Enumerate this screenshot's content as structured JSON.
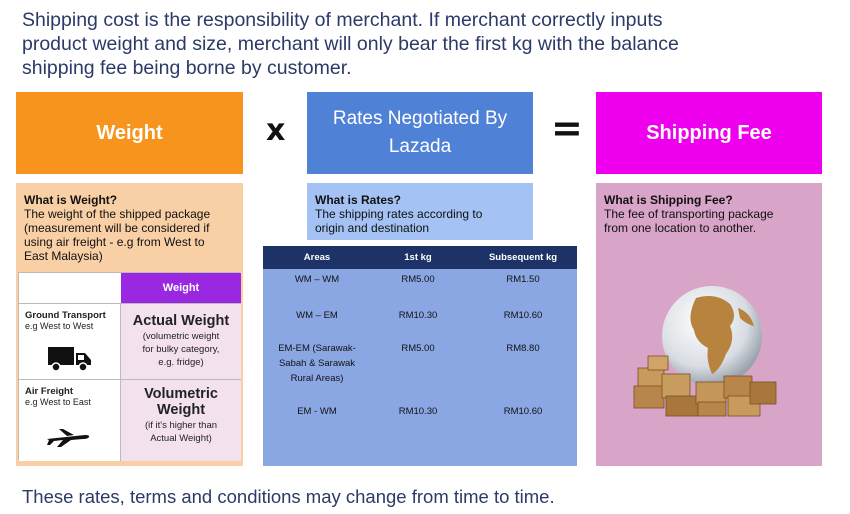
{
  "intro": {
    "line1": "Shipping cost is the responsibility of merchant. If merchant correctly inputs",
    "line2": "product weight and size, merchant will only bear the first kg with the balance",
    "line3": "shipping fee being borne by customer."
  },
  "headers": {
    "weight": "Weight",
    "operator_multiply": "x",
    "rates_line1": "Rates Negotiated By",
    "rates_line2": "Lazada",
    "operator_equals": "=",
    "shipping_fee": "Shipping Fee"
  },
  "weight_panel": {
    "title": "What is Weight?",
    "line1": "The weight of the shipped package",
    "line2": "(measurement will be considered if",
    "line3": "using air freight - e.g from West to",
    "line4": "East Malaysia)"
  },
  "weight_table": {
    "column_header": "Weight",
    "rows": [
      {
        "mode": "Ground Transport",
        "example": "e.g West to West",
        "weight_type": "Actual Weight",
        "note_line1": "(volumetric weight",
        "note_line2": "for bulky category,",
        "note_line3": "e.g. fridge)"
      },
      {
        "mode": "Air Freight",
        "example": "e.g West to East",
        "weight_type_line1": "Volumetric",
        "weight_type_line2": "Weight",
        "note_line1": "(if it's higher than",
        "note_line2": "Actual Weight)"
      }
    ]
  },
  "rates_panel": {
    "title": "What is Rates?",
    "line1": "The shipping rates according to",
    "line2": "origin and destination"
  },
  "rates_table": {
    "headers": [
      "Areas",
      "1st kg",
      "Subsequent kg"
    ],
    "rows": [
      {
        "area": "WM – WM",
        "first": "RM5.00",
        "subsequent": "RM1.50"
      },
      {
        "area": "WM – EM",
        "first": "RM10.30",
        "subsequent": "RM10.60"
      },
      {
        "area_line1": "EM-EM (Sarawak-",
        "area_line2": "Sabah & Sarawak",
        "area_line3": "Rural Areas)",
        "first": "RM5.00",
        "subsequent": "RM8.80"
      },
      {
        "area": "EM - WM",
        "first": "RM10.30",
        "subsequent": "RM10.60"
      }
    ]
  },
  "fee_panel": {
    "title": "What is Shipping Fee?",
    "line1": "The fee of transporting package",
    "line2": "from one location to another."
  },
  "footer": "These rates, terms and conditions may change from time to time.",
  "colors": {
    "weight_header": "#f7941d",
    "rates_header": "#4f81d6",
    "fee_header": "#ee00ee",
    "weight_panel": "#f9cfa5",
    "rates_panel": "#a4c2f4",
    "fee_panel": "#d8a4c8",
    "weight_table_header": "#9a28e0",
    "rates_table_header": "#1d3266",
    "rates_table_body": "#8aa7e3"
  },
  "icons": [
    "truck-icon",
    "airplane-icon",
    "globe-with-boxes-icon"
  ]
}
